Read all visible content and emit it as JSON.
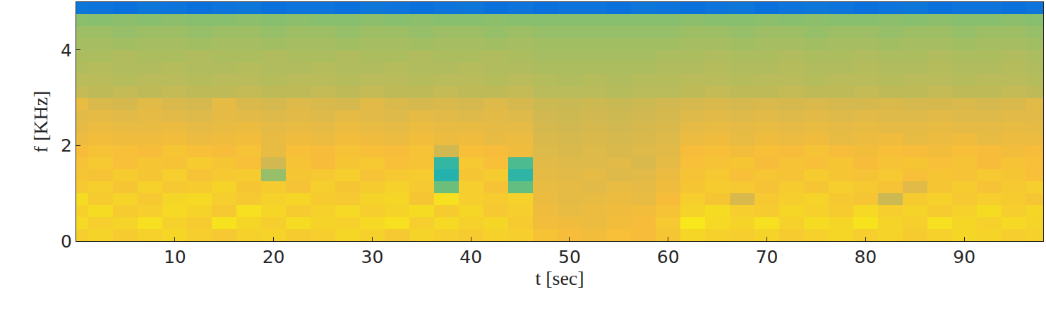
{
  "chart_data": {
    "type": "heatmap",
    "x_label": "t [sec]",
    "y_label": "f [KHz]",
    "xlim": [
      0,
      98
    ],
    "ylim": [
      0,
      5
    ],
    "xticks": [
      10,
      20,
      30,
      40,
      50,
      60,
      70,
      80,
      90
    ],
    "yticks": [
      0,
      2,
      4
    ],
    "zlim": [
      0,
      10
    ],
    "x": [
      0,
      2.5,
      5,
      7.5,
      10,
      12.5,
      15,
      17.5,
      20,
      22.5,
      25,
      27.5,
      30,
      32.5,
      35,
      37.5,
      40,
      42.5,
      45,
      47.5,
      50,
      52.5,
      55,
      57.5,
      60,
      62.5,
      65,
      67.5,
      70,
      72.5,
      75,
      77.5,
      80,
      82.5,
      85,
      87.5,
      90,
      92.5,
      95,
      97.5
    ],
    "y": [
      0.125,
      0.375,
      0.625,
      0.875,
      1.125,
      1.375,
      1.625,
      1.875,
      2.125,
      2.375,
      2.625,
      2.875,
      3.125,
      3.375,
      3.625,
      3.875,
      4.125,
      4.375,
      4.625,
      4.875
    ],
    "cells": [
      [
        8.6,
        8.8,
        8.5,
        8.7,
        8.9,
        8.6,
        8.4,
        8.7,
        8.8,
        8.5,
        8.6,
        8.9,
        8.7,
        8.4,
        8.8,
        8.6,
        8.5,
        8.7,
        8.6,
        8.2,
        8.0,
        7.9,
        8.1,
        8.0,
        8.3,
        8.9,
        8.7,
        8.6,
        8.8,
        8.5,
        8.7,
        8.9,
        8.6,
        8.8,
        8.5,
        8.7,
        8.9,
        8.8,
        8.6,
        8.7
      ],
      [
        9.0,
        8.6,
        8.8,
        9.2,
        8.7,
        8.5,
        9.3,
        8.9,
        8.6,
        9.1,
        8.8,
        8.7,
        9.0,
        9.2,
        8.6,
        9.0,
        8.7,
        8.9,
        8.5,
        7.9,
        7.8,
        7.7,
        7.9,
        8.0,
        8.4,
        9.4,
        9.0,
        8.8,
        9.2,
        8.7,
        9.1,
        8.9,
        9.3,
        8.8,
        8.6,
        9.2,
        8.9,
        8.7,
        9.0,
        8.8
      ],
      [
        8.7,
        9.1,
        8.5,
        8.6,
        9.0,
        8.8,
        8.4,
        9.2,
        8.9,
        8.5,
        8.7,
        9.0,
        8.6,
        8.8,
        9.1,
        8.5,
        8.9,
        8.4,
        8.6,
        7.8,
        7.6,
        7.7,
        7.8,
        7.9,
        8.2,
        8.8,
        9.1,
        8.6,
        8.5,
        8.9,
        8.7,
        8.5,
        9.0,
        8.6,
        8.8,
        8.5,
        8.7,
        9.1,
        8.6,
        8.9
      ],
      [
        9.1,
        8.5,
        8.8,
        8.4,
        8.9,
        9.0,
        8.6,
        8.4,
        8.7,
        8.9,
        8.5,
        8.4,
        8.8,
        8.9,
        8.3,
        9.2,
        8.6,
        8.5,
        8.7,
        7.7,
        7.5,
        7.6,
        7.7,
        7.6,
        8.0,
        8.6,
        8.3,
        7.2,
        8.4,
        8.6,
        8.8,
        8.4,
        8.3,
        6.9,
        8.5,
        8.7,
        8.4,
        8.6,
        8.5,
        8.3
      ],
      [
        8.4,
        8.6,
        8.3,
        8.7,
        8.4,
        8.5,
        8.8,
        8.3,
        8.5,
        8.2,
        8.6,
        8.3,
        8.5,
        8.7,
        8.4,
        5.0,
        8.6,
        8.2,
        4.8,
        7.6,
        7.5,
        7.4,
        7.6,
        7.5,
        7.8,
        8.3,
        8.5,
        8.4,
        8.2,
        8.5,
        8.3,
        8.6,
        8.4,
        8.2,
        7.4,
        8.3,
        8.5,
        8.2,
        8.4,
        8.6
      ],
      [
        8.3,
        8.2,
        8.5,
        8.3,
        8.6,
        8.2,
        8.4,
        8.5,
        5.8,
        8.3,
        8.4,
        8.6,
        8.2,
        8.4,
        8.5,
        3.6,
        8.3,
        8.5,
        3.8,
        7.5,
        7.4,
        7.5,
        7.3,
        7.4,
        7.7,
        8.2,
        8.4,
        8.1,
        8.3,
        8.2,
        8.5,
        8.3,
        8.2,
        8.4,
        8.1,
        8.3,
        8.2,
        8.4,
        8.3,
        8.1
      ],
      [
        8.2,
        8.4,
        8.1,
        8.3,
        8.2,
        8.5,
        8.3,
        8.1,
        7.0,
        8.2,
        8.0,
        8.3,
        8.4,
        8.1,
        8.2,
        3.9,
        8.4,
        8.1,
        4.4,
        7.4,
        7.3,
        7.3,
        7.4,
        7.2,
        7.5,
        8.1,
        8.2,
        8.3,
        8.0,
        8.2,
        8.1,
        8.3,
        8.0,
        8.2,
        8.3,
        8.1,
        8.2,
        8.0,
        8.2,
        8.1
      ],
      [
        8.0,
        8.2,
        8.1,
        8.0,
        8.3,
        8.1,
        8.0,
        8.2,
        7.6,
        8.1,
        8.0,
        8.2,
        8.1,
        8.0,
        8.2,
        7.0,
        8.1,
        8.0,
        7.8,
        7.3,
        7.2,
        7.3,
        7.2,
        7.3,
        7.4,
        8.0,
        8.1,
        7.9,
        8.1,
        8.0,
        8.2,
        8.0,
        7.9,
        8.1,
        8.0,
        7.9,
        8.1,
        8.0,
        7.9,
        8.0
      ],
      [
        7.7,
        7.9,
        7.8,
        7.8,
        7.9,
        7.7,
        7.8,
        7.9,
        7.6,
        7.8,
        7.7,
        7.9,
        7.8,
        7.7,
        7.9,
        7.7,
        7.8,
        7.6,
        7.7,
        7.2,
        7.1,
        7.2,
        7.1,
        7.2,
        7.3,
        7.7,
        7.8,
        7.6,
        7.8,
        7.7,
        7.8,
        7.6,
        7.7,
        7.8,
        7.6,
        7.7,
        7.8,
        7.6,
        7.7,
        7.7
      ],
      [
        7.5,
        7.7,
        7.6,
        7.6,
        7.7,
        7.5,
        7.6,
        7.7,
        7.5,
        7.6,
        7.5,
        7.7,
        7.6,
        7.5,
        7.7,
        7.6,
        7.6,
        7.5,
        7.5,
        7.1,
        7.0,
        7.1,
        7.0,
        7.1,
        7.2,
        7.5,
        7.6,
        7.5,
        7.6,
        7.5,
        7.6,
        7.5,
        7.6,
        7.5,
        7.5,
        7.6,
        7.5,
        7.5,
        7.6,
        7.5
      ],
      [
        7.4,
        7.5,
        7.4,
        7.5,
        7.4,
        7.3,
        7.5,
        7.4,
        7.3,
        7.4,
        7.3,
        7.5,
        7.4,
        7.3,
        7.5,
        7.4,
        7.3,
        7.4,
        7.3,
        7.0,
        6.9,
        7.0,
        6.9,
        7.0,
        7.1,
        7.3,
        7.4,
        7.3,
        7.4,
        7.3,
        7.4,
        7.3,
        7.4,
        7.3,
        7.3,
        7.4,
        7.3,
        7.3,
        7.4,
        7.4
      ],
      [
        7.6,
        7.2,
        7.1,
        7.4,
        7.2,
        7.1,
        7.5,
        7.2,
        7.1,
        7.3,
        7.2,
        7.1,
        7.4,
        7.2,
        7.1,
        7.2,
        7.1,
        7.3,
        7.1,
        6.9,
        6.8,
        6.9,
        6.8,
        6.9,
        7.0,
        7.1,
        7.2,
        7.1,
        7.2,
        7.1,
        7.2,
        7.1,
        7.1,
        7.2,
        7.1,
        7.1,
        7.2,
        7.1,
        7.2,
        7.4
      ],
      [
        6.7,
        6.6,
        6.7,
        6.6,
        6.7,
        6.6,
        6.6,
        6.7,
        6.6,
        6.6,
        6.7,
        6.6,
        6.7,
        6.6,
        6.6,
        6.7,
        6.6,
        6.6,
        6.7,
        6.5,
        6.5,
        6.5,
        6.4,
        6.5,
        6.5,
        6.6,
        6.7,
        6.6,
        6.6,
        6.7,
        6.6,
        6.6,
        6.7,
        6.6,
        6.6,
        6.7,
        6.6,
        6.6,
        6.7,
        6.6
      ],
      [
        6.5,
        6.5,
        6.4,
        6.5,
        6.5,
        6.4,
        6.5,
        6.5,
        6.4,
        6.5,
        6.5,
        6.4,
        6.5,
        6.5,
        6.4,
        6.5,
        6.5,
        6.4,
        6.5,
        6.4,
        6.3,
        6.4,
        6.3,
        6.4,
        6.4,
        6.5,
        6.5,
        6.4,
        6.5,
        6.5,
        6.4,
        6.5,
        6.5,
        6.4,
        6.5,
        6.5,
        6.4,
        6.5,
        6.5,
        6.4
      ],
      [
        6.3,
        6.4,
        6.3,
        6.3,
        6.4,
        6.3,
        6.3,
        6.4,
        6.3,
        6.3,
        6.4,
        6.3,
        6.3,
        6.4,
        6.3,
        6.3,
        6.4,
        6.3,
        6.3,
        6.2,
        6.2,
        6.2,
        6.2,
        6.2,
        6.3,
        6.3,
        6.4,
        6.3,
        6.3,
        6.4,
        6.3,
        6.3,
        6.4,
        6.3,
        6.3,
        6.4,
        6.3,
        6.3,
        6.4,
        6.3
      ],
      [
        6.2,
        6.2,
        6.3,
        6.2,
        6.2,
        6.3,
        6.2,
        6.2,
        6.3,
        6.2,
        6.2,
        6.3,
        6.2,
        6.2,
        6.3,
        6.2,
        6.2,
        6.3,
        6.2,
        6.1,
        6.1,
        6.1,
        6.1,
        6.1,
        6.2,
        6.2,
        6.3,
        6.2,
        6.2,
        6.3,
        6.2,
        6.2,
        6.3,
        6.2,
        6.2,
        6.3,
        6.2,
        6.2,
        6.3,
        6.2
      ],
      [
        6.1,
        6.1,
        6.0,
        6.1,
        6.1,
        6.0,
        6.1,
        6.1,
        6.0,
        6.1,
        6.1,
        6.0,
        6.1,
        6.1,
        6.0,
        6.1,
        6.1,
        6.0,
        6.1,
        6.0,
        6.0,
        6.0,
        6.0,
        6.0,
        6.0,
        6.1,
        6.1,
        6.0,
        6.1,
        6.1,
        6.0,
        6.1,
        6.1,
        6.0,
        6.1,
        6.1,
        6.0,
        6.1,
        6.1,
        6.0
      ],
      [
        5.9,
        5.9,
        5.8,
        5.9,
        5.9,
        5.8,
        5.9,
        5.9,
        5.8,
        5.9,
        5.9,
        5.8,
        5.9,
        5.9,
        5.8,
        5.9,
        5.9,
        5.8,
        5.9,
        5.8,
        5.8,
        5.8,
        5.8,
        5.8,
        5.8,
        5.9,
        5.9,
        5.8,
        5.9,
        5.9,
        5.8,
        5.9,
        5.9,
        5.8,
        5.9,
        5.9,
        5.8,
        5.9,
        5.9,
        5.8
      ],
      [
        5.6,
        5.5,
        5.6,
        5.5,
        5.6,
        5.5,
        5.5,
        5.6,
        5.5,
        5.6,
        5.5,
        5.5,
        5.6,
        5.5,
        5.6,
        5.5,
        5.5,
        5.6,
        5.5,
        5.5,
        5.5,
        5.5,
        5.5,
        5.5,
        5.5,
        5.6,
        5.5,
        5.5,
        5.6,
        5.5,
        5.6,
        5.5,
        5.5,
        5.6,
        5.5,
        5.6,
        5.5,
        5.5,
        5.6,
        5.5
      ],
      [
        1.6,
        1.5,
        1.4,
        1.6,
        1.5,
        1.4,
        1.5,
        1.6,
        1.4,
        1.5,
        1.5,
        1.4,
        1.6,
        1.5,
        1.4,
        1.5,
        1.6,
        1.4,
        1.5,
        1.4,
        1.5,
        1.5,
        1.4,
        1.6,
        1.5,
        1.4,
        1.5,
        1.6,
        1.4,
        1.5,
        1.6,
        1.5,
        1.4,
        1.5,
        1.6,
        1.4,
        1.5,
        1.5,
        1.4,
        1.5
      ]
    ]
  }
}
